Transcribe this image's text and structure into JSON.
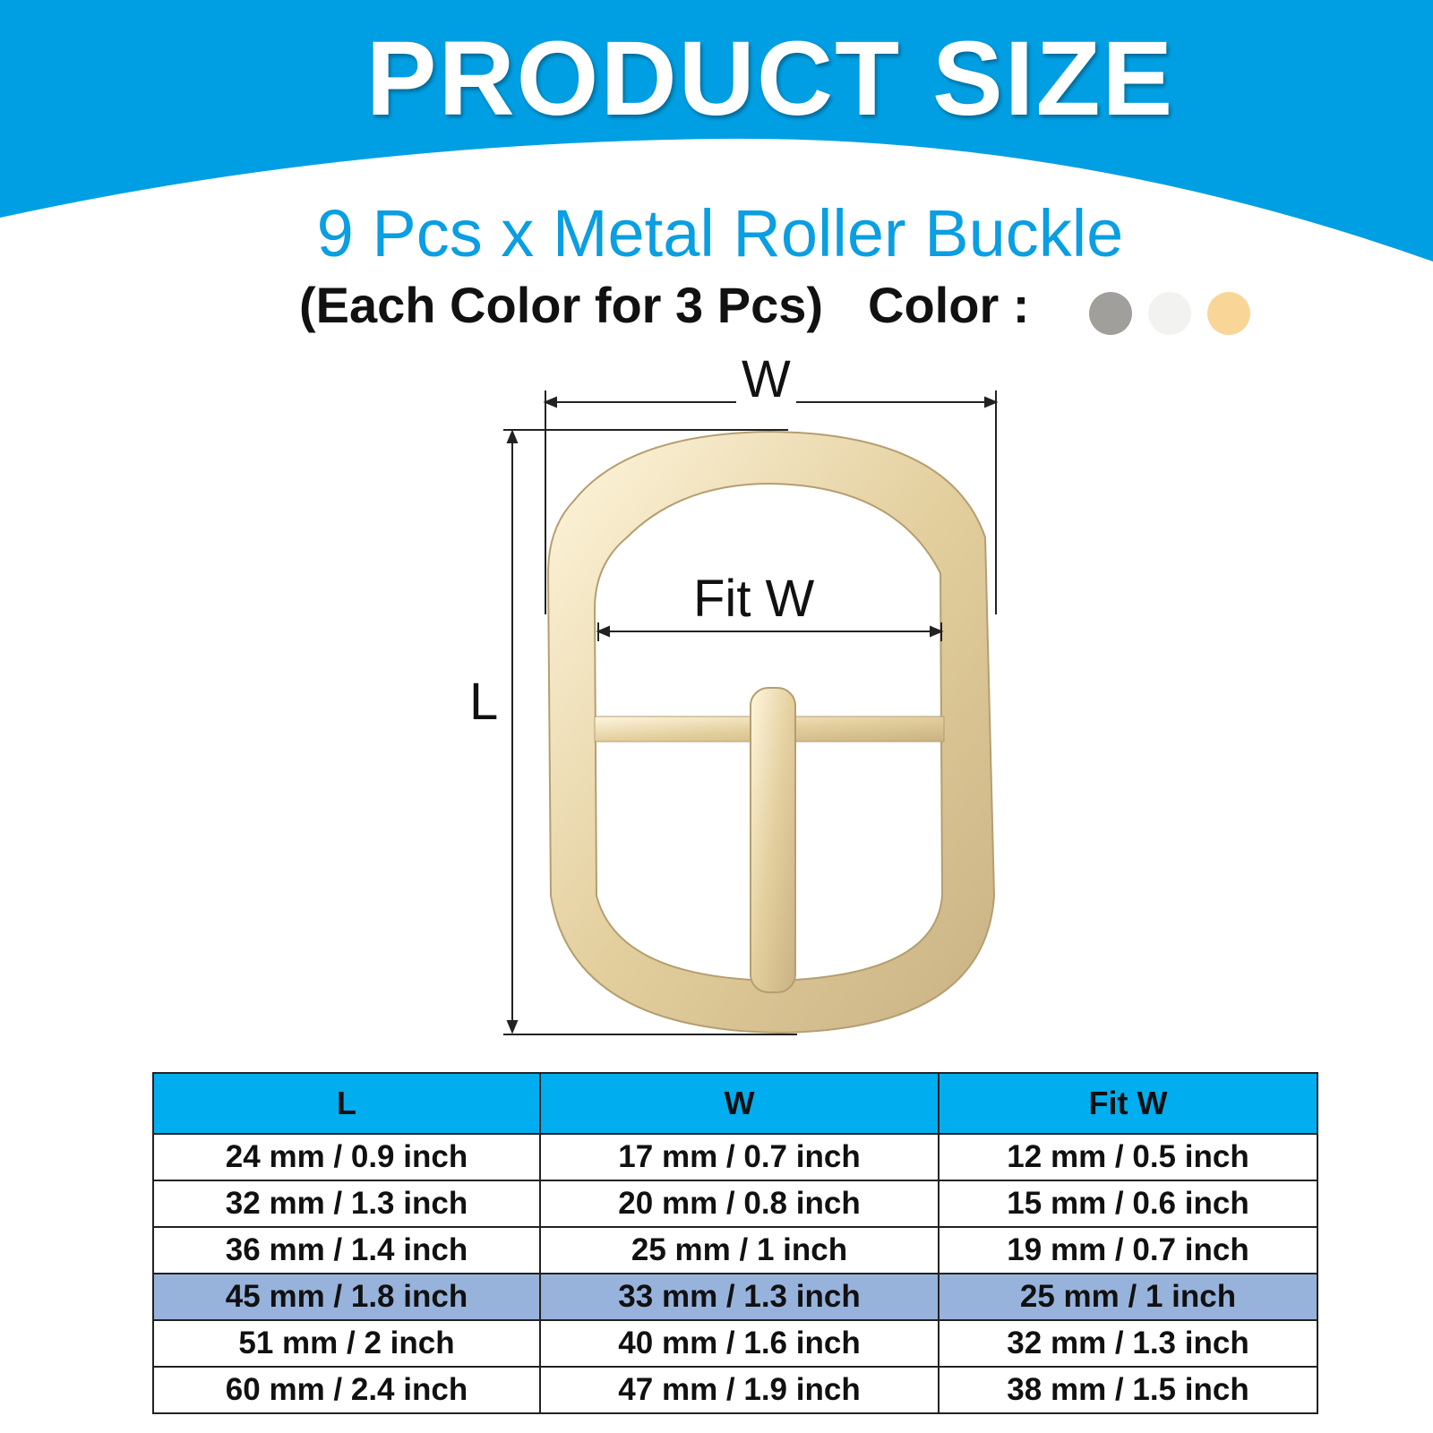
{
  "header": {
    "title": "PRODUCT SIZE",
    "subtitle": "9 Pcs x Metal Roller Buckle",
    "note": "(Each Color for 3 Pcs)",
    "color_label": "Color :"
  },
  "colors": {
    "banner": "#009fe3",
    "swatches": [
      "#a09f9b",
      "#f2f2f0",
      "#f9d697"
    ]
  },
  "diagram": {
    "width_label": "W",
    "length_label": "L",
    "fit_width_label": "Fit W"
  },
  "table": {
    "headers": [
      "L",
      "W",
      "Fit W"
    ],
    "rows": [
      [
        "24 mm / 0.9 inch",
        "17 mm / 0.7 inch",
        "12 mm / 0.5 inch"
      ],
      [
        "32 mm / 1.3 inch",
        "20 mm / 0.8 inch",
        "15 mm / 0.6 inch"
      ],
      [
        "36 mm / 1.4 inch",
        "25 mm / 1 inch",
        "19 mm / 0.7 inch"
      ],
      [
        "45 mm / 1.8 inch",
        "33 mm / 1.3 inch",
        "25 mm / 1 inch"
      ],
      [
        "51 mm / 2 inch",
        "40 mm / 1.6 inch",
        "32 mm / 1.3 inch"
      ],
      [
        "60 mm / 2.4 inch",
        "47 mm / 1.9 inch",
        "38 mm / 1.5 inch"
      ]
    ],
    "highlighted_row": 3
  }
}
